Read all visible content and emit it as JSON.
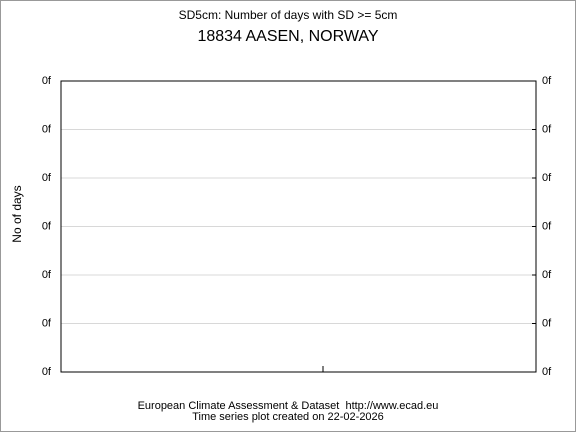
{
  "chart_data": {
    "type": "line",
    "title": "SD5cm: Number of days with SD >= 5cm",
    "subtitle": "18834 AASEN, NORWAY",
    "ylabel": "No of days",
    "footer": [
      "European Climate Assessment & Dataset  http://www.ecad.eu",
      "Time series plot created on 22-02-2026"
    ],
    "series": [],
    "ylim": [
      0,
      6
    ],
    "yticks": [
      {
        "value": 0,
        "label": "0f"
      },
      {
        "value": 1,
        "label": "0f"
      },
      {
        "value": 2,
        "label": "0f"
      },
      {
        "value": 3,
        "label": "0f"
      },
      {
        "value": 4,
        "label": "0f"
      },
      {
        "value": 5,
        "label": "0f"
      },
      {
        "value": 6,
        "label": "0f"
      }
    ],
    "y2lim": [
      0,
      6
    ],
    "y2ticks": [
      {
        "value": 0,
        "label": "0f"
      },
      {
        "value": 1,
        "label": "0f"
      },
      {
        "value": 2,
        "label": "0f"
      },
      {
        "value": 3,
        "label": "0f"
      },
      {
        "value": 4,
        "label": "0f"
      },
      {
        "value": 5,
        "label": "0f"
      },
      {
        "value": 6,
        "label": "0f"
      }
    ],
    "grid": true
  }
}
